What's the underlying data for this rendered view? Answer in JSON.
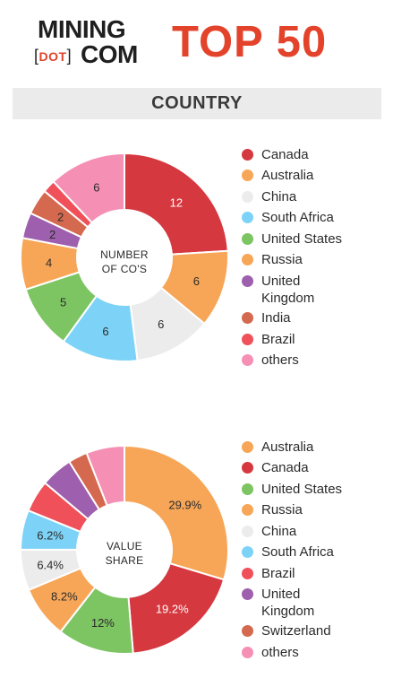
{
  "header": {
    "logo_line1": "MINING",
    "logo_dot": "DOT",
    "logo_line2": "COM",
    "title": "TOP 50"
  },
  "section": {
    "title": "COUNTRY"
  },
  "colors": {
    "Canada": "#d5383f",
    "Australia": "#f7a657",
    "China": "#ececec",
    "South Africa": "#7dd3f7",
    "United States": "#7dc463",
    "Russia": "#f7a657",
    "United Kingdom": "#9e60ae",
    "India": "#d4694f",
    "Brazil": "#ef5059",
    "Switzerland": "#d4694f",
    "others": "#f590b4"
  },
  "chart_data": [
    {
      "type": "pie",
      "subtype": "donut",
      "center_label": [
        "NUMBER",
        "OF CO'S"
      ],
      "legend_position": "right",
      "slices": [
        {
          "label": "Canada",
          "value": 12,
          "display": "12"
        },
        {
          "label": "Russia",
          "value": 6,
          "display": "6"
        },
        {
          "label": "China",
          "value": 6,
          "display": "6"
        },
        {
          "label": "South Africa",
          "value": 6,
          "display": "6"
        },
        {
          "label": "United States",
          "value": 5,
          "display": "5"
        },
        {
          "label": "Australia",
          "value": 4,
          "display": "4"
        },
        {
          "label": "United Kingdom",
          "value": 2,
          "display": "2"
        },
        {
          "label": "India",
          "value": 2,
          "display": "2"
        },
        {
          "label": "Brazil",
          "value": 1,
          "display": ""
        },
        {
          "label": "others",
          "value": 6,
          "display": "6"
        }
      ],
      "legend": [
        "Canada",
        "Australia",
        "China",
        "South Africa",
        "United States",
        "Russia",
        "United Kingdom",
        "India",
        "Brazil",
        "others"
      ]
    },
    {
      "type": "pie",
      "subtype": "donut",
      "center_label": [
        "VALUE",
        "SHARE"
      ],
      "legend_position": "right",
      "slices": [
        {
          "label": "Australia",
          "value": 29.9,
          "display": "29.9%"
        },
        {
          "label": "Canada",
          "value": 19.2,
          "display": "19.2%"
        },
        {
          "label": "United States",
          "value": 12,
          "display": "12%"
        },
        {
          "label": "Russia",
          "value": 8.2,
          "display": "8.2%"
        },
        {
          "label": "China",
          "value": 6.4,
          "display": "6.4%"
        },
        {
          "label": "South Africa",
          "value": 6.2,
          "display": "6.2%"
        },
        {
          "label": "Brazil",
          "value": 5,
          "display": ""
        },
        {
          "label": "United Kingdom",
          "value": 5,
          "display": ""
        },
        {
          "label": "Switzerland",
          "value": 3,
          "display": ""
        },
        {
          "label": "others",
          "value": 6,
          "display": ""
        }
      ],
      "legend": [
        "Australia",
        "Canada",
        "United States",
        "Russia",
        "China",
        "South Africa",
        "Brazil",
        "United Kingdom",
        "Switzerland",
        "others"
      ]
    }
  ]
}
